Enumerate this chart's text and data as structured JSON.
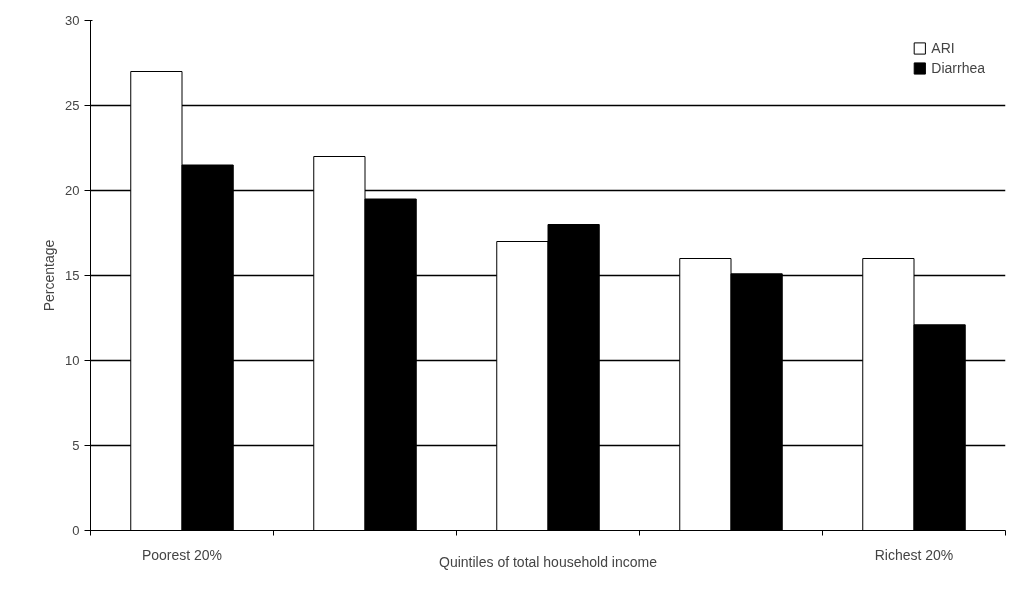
{
  "chart_data": {
    "type": "bar",
    "categories": [
      "Poorest 20%",
      null,
      null,
      null,
      "Richest 20%"
    ],
    "xlabel": "Quintiles of total household income",
    "ylabel": "Percentage",
    "series": [
      {
        "name": "ARI",
        "color": "#ffffff",
        "values": [
          27,
          22,
          17,
          16,
          16
        ]
      },
      {
        "name": "Diarrhea",
        "color": "#000000",
        "values": [
          21.5,
          19.5,
          18,
          15.1,
          12.1
        ]
      }
    ],
    "ylim": [
      0,
      30
    ],
    "yticks": [
      0,
      5,
      10,
      15,
      20,
      25,
      30
    ],
    "grid": "y",
    "legend": "top right"
  }
}
